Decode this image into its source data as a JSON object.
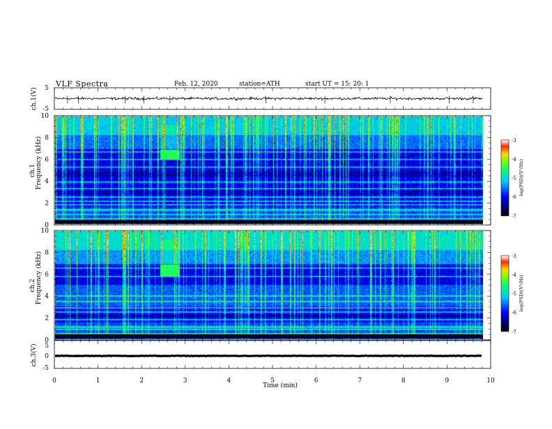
{
  "header": {
    "title": "VLF  Spectra",
    "date": "Feb. 12, 2020",
    "station": "station=ATH",
    "start_ut": "start  UT  =    15: 20: 1"
  },
  "chart_data": [
    {
      "type": "line",
      "name": "ch1-waveform",
      "ylabel": "ch.1(V)",
      "ylim": [
        -5,
        5
      ],
      "yticks": [
        "5",
        "-5"
      ],
      "xlim": [
        0,
        10
      ],
      "data_extent_x": 9.82,
      "y_level": 0.0,
      "y_noise": 0.9,
      "spikes_x": [
        0.3,
        0.55,
        1.62,
        2.05,
        2.65,
        4.85,
        6.2,
        7.7,
        9.05,
        9.6
      ]
    },
    {
      "type": "heatmap",
      "name": "ch1-spectrogram",
      "ylabel": "ch.1\nFrequency  (kHz)",
      "ylabel_line1": "ch.1",
      "ylabel_line2": "Frequency  (kHz)",
      "ylim": [
        0,
        10
      ],
      "yticks": [
        "0",
        "2",
        "4",
        "6",
        "8",
        "10"
      ],
      "xlim": [
        0,
        10
      ],
      "data_extent_x": 9.82,
      "colorbar": {
        "label": "log(PSD)(V²/Hz)",
        "range": [
          -7,
          -3
        ],
        "ticks": [
          "-7",
          "-6",
          "-5",
          "-4",
          "-3"
        ]
      },
      "features": {
        "burst": {
          "x": [
            2.42,
            2.85
          ],
          "f": [
            6.0,
            6.9
          ]
        },
        "bands_khz": [
          6.7,
          6.0,
          5.3,
          3.9,
          3.3,
          2.5,
          2.1,
          1.8,
          1.3,
          0.9,
          0.5
        ],
        "dark_bands_khz": [
          [
            4.4,
            4.9
          ],
          [
            2.7,
            3.1
          ]
        ],
        "strong_lines_khz": [
          0.1,
          0.25
        ]
      }
    },
    {
      "type": "heatmap",
      "name": "ch2-spectrogram",
      "ylabel_line1": "ch.2",
      "ylabel_line2": "Frequency  (kHz)",
      "ylim": [
        0,
        10
      ],
      "yticks": [
        "0",
        "2",
        "4",
        "6",
        "8",
        "10"
      ],
      "xlim": [
        0,
        10
      ],
      "data_extent_x": 9.82,
      "colorbar": {
        "label": "log(PSD)(V²/Hz)",
        "range": [
          -7,
          -3
        ],
        "ticks": [
          "-7",
          "-6",
          "-5",
          "-4",
          "-3"
        ]
      },
      "features": {
        "burst": {
          "x": [
            2.42,
            2.85
          ],
          "f": [
            5.8,
            6.9
          ]
        },
        "bands_khz": [
          6.6,
          5.8,
          4.0,
          3.5,
          2.9,
          2.5,
          1.8,
          1.1,
          0.9,
          0.5
        ],
        "dark_bands_khz": [
          [
            2.0,
            2.3
          ]
        ],
        "strong_lines_khz": [
          0.1,
          0.3
        ]
      }
    },
    {
      "type": "line",
      "name": "ch3-waveform",
      "ylabel": "ch.3(V)",
      "ylim": [
        -5,
        5
      ],
      "yticks": [
        "5",
        "0",
        "-5"
      ],
      "xlim": [
        0,
        10
      ],
      "xticks": [
        "0",
        "1",
        "2",
        "3",
        "4",
        "5",
        "6",
        "7",
        "8",
        "9",
        "10"
      ],
      "xlabel": "Time  (min)",
      "data_extent_x": 9.82,
      "y_level": -0.5,
      "y_noise": 0.15
    }
  ]
}
